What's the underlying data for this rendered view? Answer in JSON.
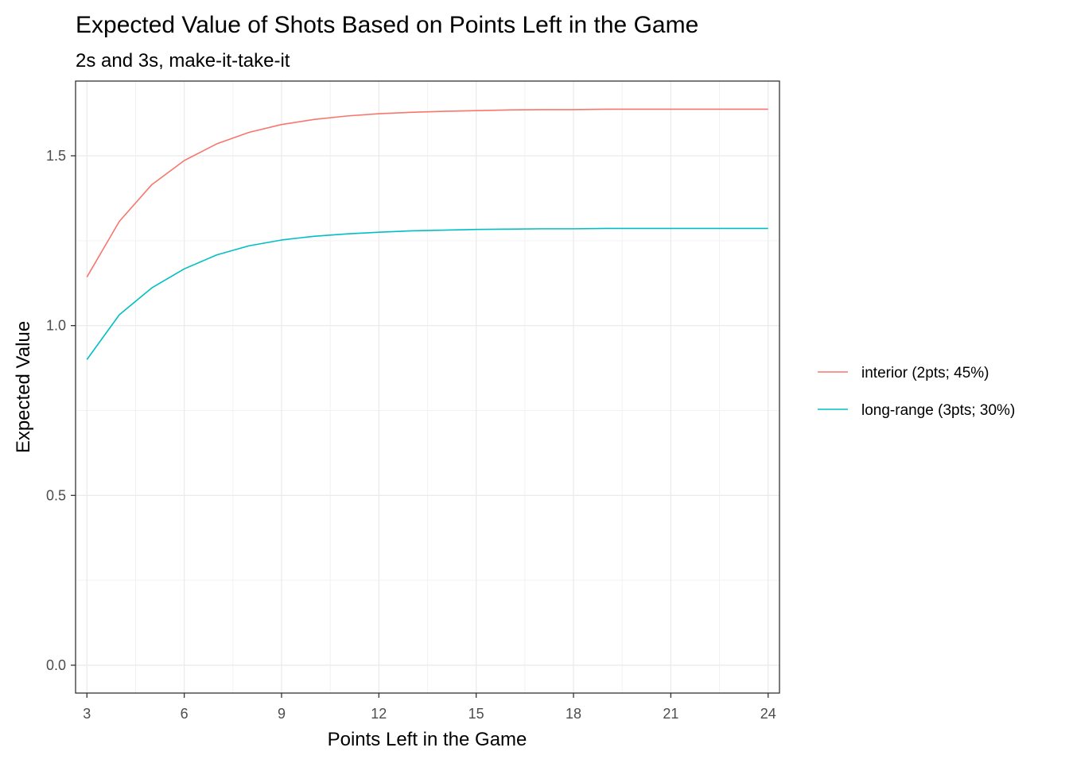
{
  "chart_data": {
    "type": "line",
    "title": "Expected Value of Shots Based on Points Left in the Game",
    "subtitle": "2s and 3s, make-it-take-it",
    "xlabel": "Points Left in the Game",
    "ylabel": "Expected Value",
    "xlim": [
      2.65,
      24.35
    ],
    "ylim": [
      -0.082,
      1.72
    ],
    "x_ticks": [
      3,
      6,
      9,
      12,
      15,
      18,
      21,
      24
    ],
    "x_tick_labels": [
      "3",
      "6",
      "9",
      "12",
      "15",
      "18",
      "21",
      "24"
    ],
    "y_ticks": [
      0.0,
      0.5,
      1.0,
      1.5
    ],
    "y_tick_labels": [
      "0.0",
      "0.5",
      "1.0",
      "1.5"
    ],
    "grid": true,
    "legend_position": "right",
    "x": [
      3,
      4,
      5,
      6,
      7,
      8,
      9,
      10,
      11,
      12,
      13,
      14,
      15,
      16,
      17,
      18,
      19,
      20,
      21,
      22,
      23,
      24
    ],
    "series": [
      {
        "name": "interior (2pts; 45%)",
        "color": "#F8766D",
        "values": [
          1.143,
          1.307,
          1.415,
          1.486,
          1.535,
          1.569,
          1.592,
          1.607,
          1.617,
          1.624,
          1.628,
          1.631,
          1.633,
          1.635,
          1.636,
          1.636,
          1.637,
          1.637,
          1.637,
          1.637,
          1.637,
          1.637
        ]
      },
      {
        "name": "long-range (3pts; 30%)",
        "color": "#00BFC4",
        "values": [
          0.9,
          1.032,
          1.111,
          1.167,
          1.208,
          1.235,
          1.252,
          1.263,
          1.27,
          1.275,
          1.279,
          1.281,
          1.283,
          1.284,
          1.285,
          1.285,
          1.286,
          1.286,
          1.286,
          1.286,
          1.286,
          1.286
        ]
      }
    ]
  }
}
